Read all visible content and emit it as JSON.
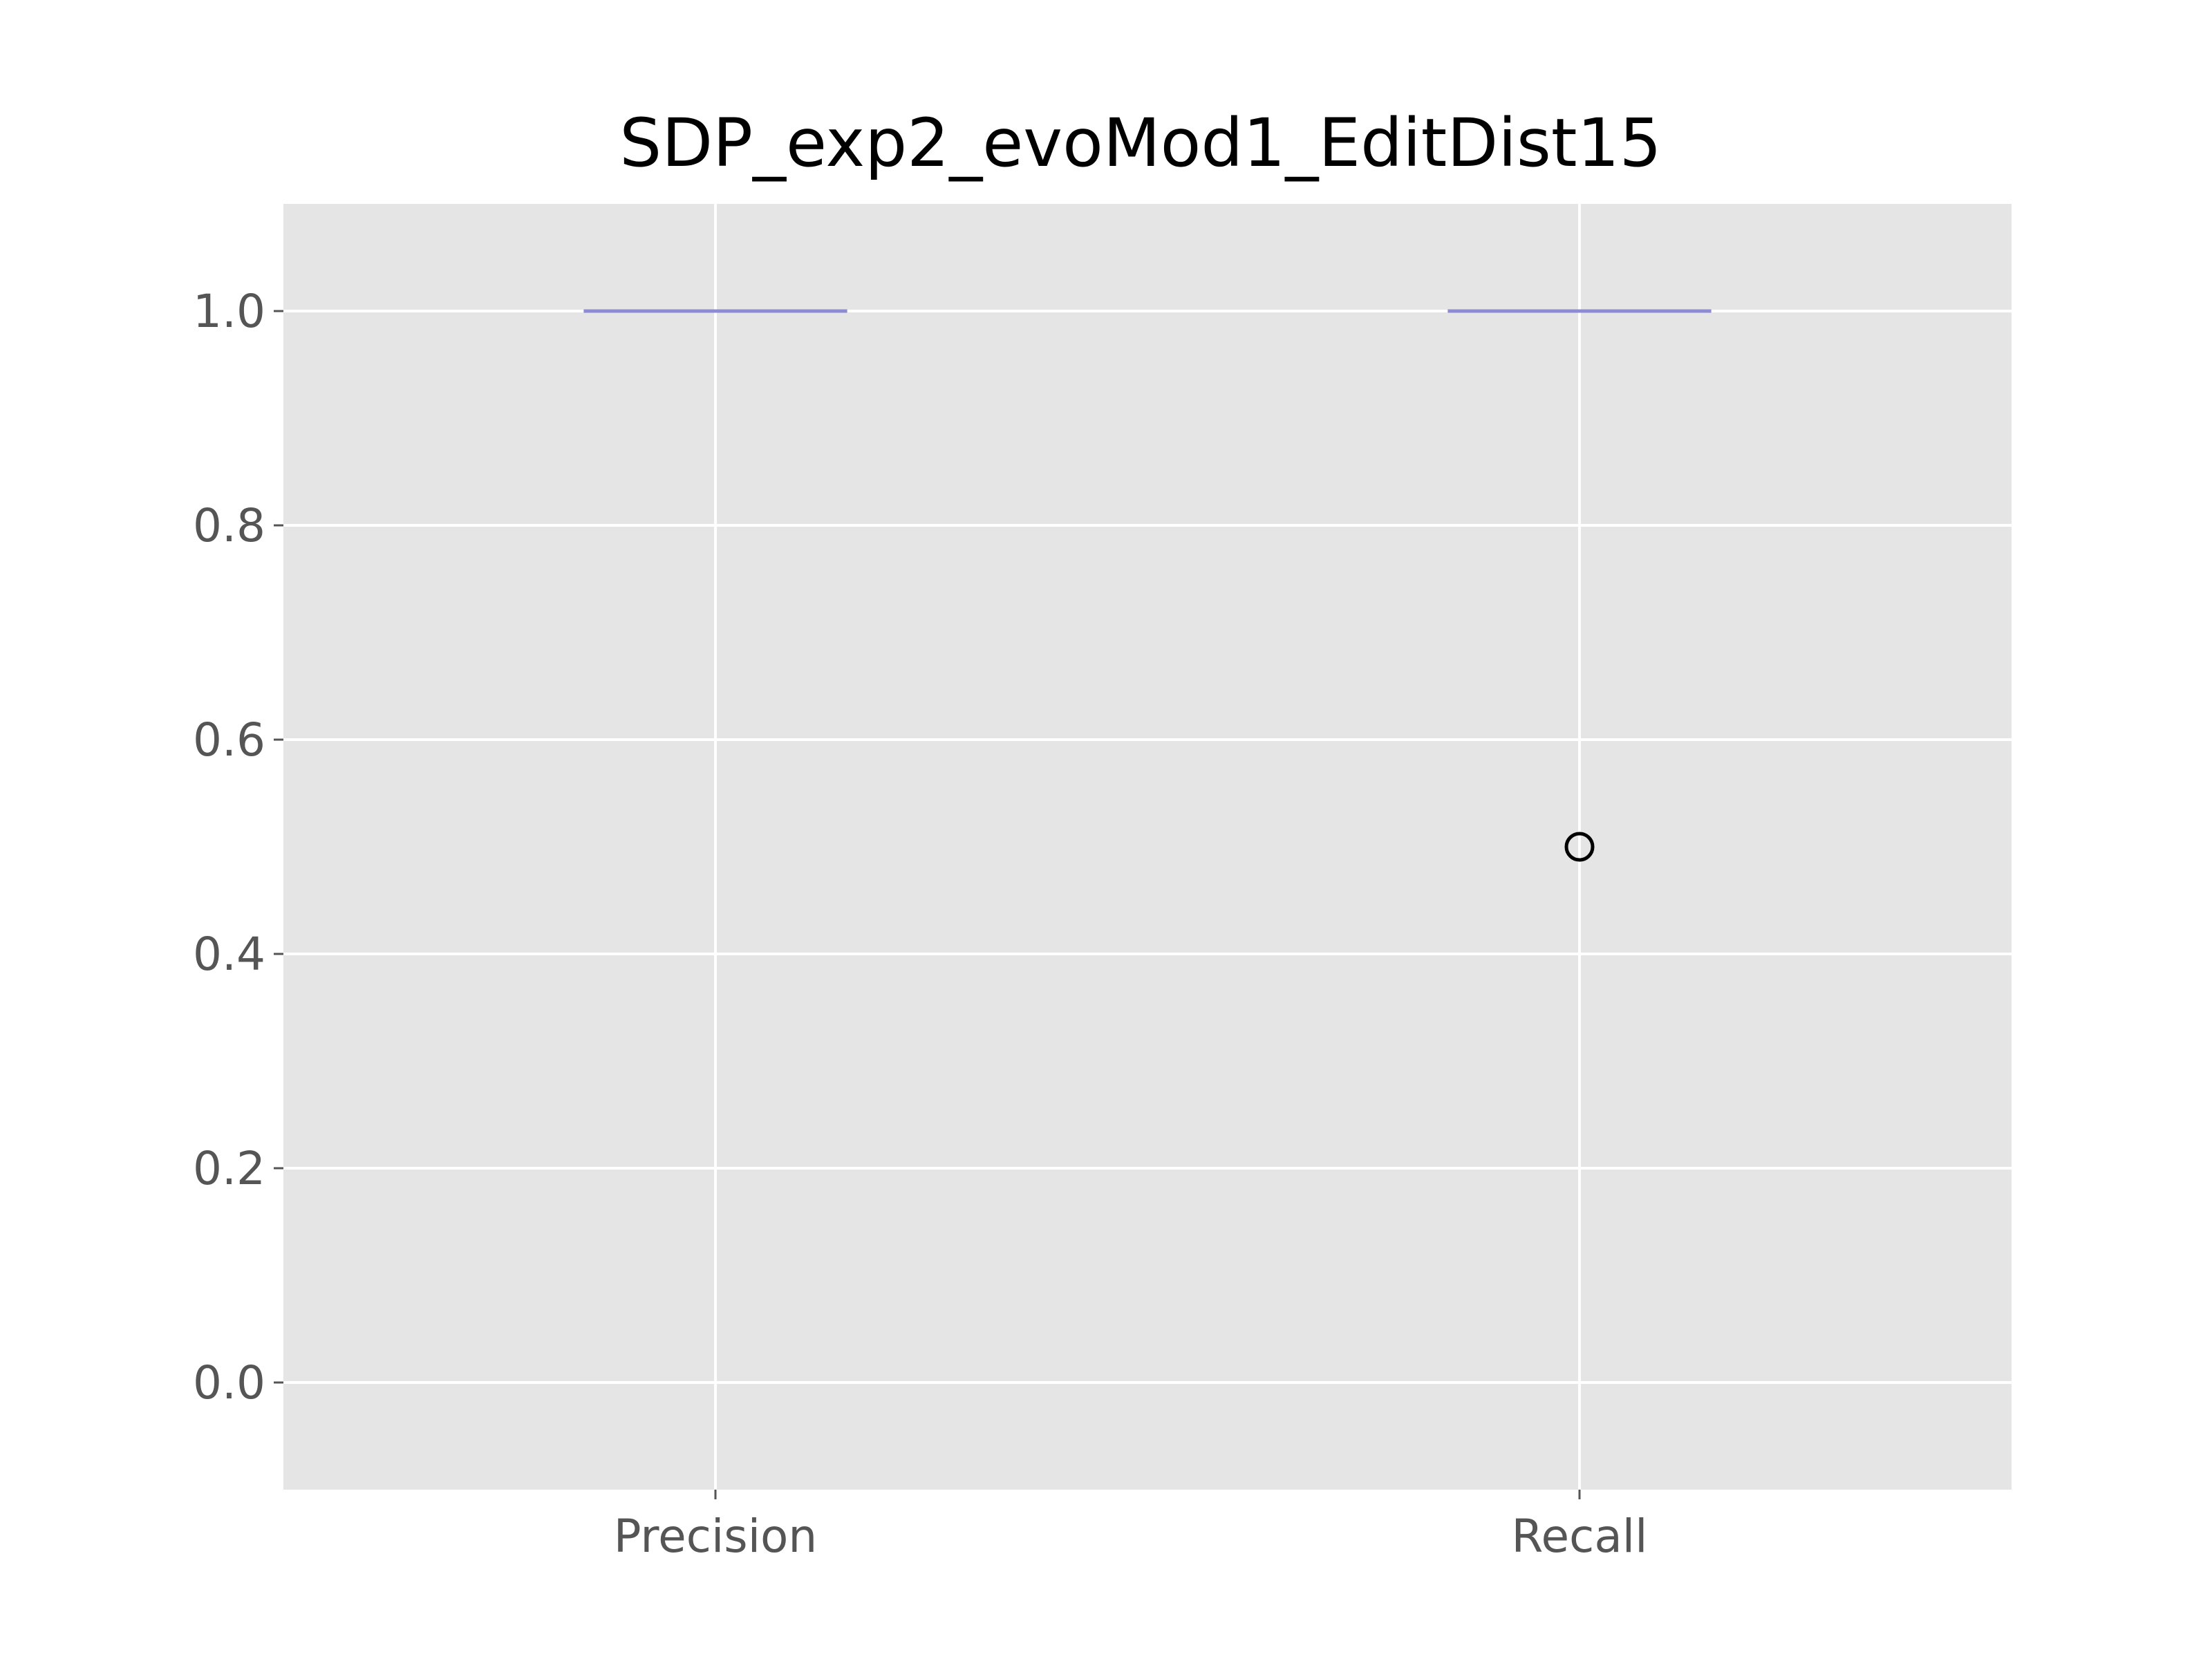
{
  "chart_data": {
    "type": "box",
    "title": "SDP_exp2_evoMod1_EditDist15",
    "xlabel": "",
    "ylabel": "",
    "categories": [
      "Precision",
      "Recall"
    ],
    "ylim": [
      -0.1,
      1.1
    ],
    "yticks": [
      0.0,
      0.2,
      0.4,
      0.6,
      0.8,
      1.0
    ],
    "ytick_labels": [
      "0.0",
      "0.2",
      "0.4",
      "0.6",
      "0.8",
      "1.0"
    ],
    "grid": true,
    "style": "ggplot",
    "boxes": [
      {
        "category": "Precision",
        "min": 1.0,
        "q1": 1.0,
        "median": 1.0,
        "q3": 1.0,
        "max": 1.0,
        "outliers": []
      },
      {
        "category": "Recall",
        "min": 1.0,
        "q1": 1.0,
        "median": 1.0,
        "q3": 1.0,
        "max": 1.0,
        "outliers": [
          0.5
        ]
      }
    ],
    "colors": {
      "plot_background": "#E5E5E5",
      "grid": "#FFFFFF",
      "median": "#8E8BD5",
      "box": "#000000",
      "outlier_edge": "#000000",
      "tick_text": "#555555"
    }
  }
}
